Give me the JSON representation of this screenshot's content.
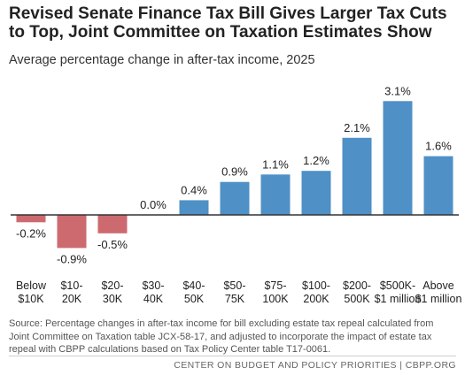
{
  "chart_data": {
    "type": "bar",
    "title_lines": [
      "Revised Senate Finance Tax Bill Gives Larger Tax Cuts",
      "to Top, Joint Committee on Taxation Estimates Show"
    ],
    "subtitle": "Average percentage change in after-tax income, 2025",
    "categories": [
      [
        "Below",
        "$10K"
      ],
      [
        "$10-",
        "20K"
      ],
      [
        "$20-",
        "30K"
      ],
      [
        "$30-",
        "40K"
      ],
      [
        "$40-",
        "50K"
      ],
      [
        "$50-",
        "75K"
      ],
      [
        "$75-",
        "100K"
      ],
      [
        "$100-",
        "200K"
      ],
      [
        "$200-",
        "500K"
      ],
      [
        "$500K-",
        "$1 million"
      ],
      [
        "Above",
        "$1 million"
      ]
    ],
    "values": [
      -0.2,
      -0.9,
      -0.5,
      0.0,
      0.4,
      0.9,
      1.1,
      1.2,
      2.1,
      3.1,
      1.6
    ],
    "value_labels": [
      "-0.2%",
      "-0.9%",
      "-0.5%",
      "0.0%",
      "0.4%",
      "0.9%",
      "1.1%",
      "1.2%",
      "2.1%",
      "3.1%",
      "1.6%"
    ],
    "colors": {
      "positive": "#4f90c6",
      "negative": "#cd6a6f",
      "axis": "#333333"
    },
    "ylim": [
      -1.1,
      3.3
    ],
    "grid": false,
    "legend": "none"
  },
  "source": "Source: Percentage changes in after-tax income for bill excluding estate tax repeal calculated from Joint Committee on Taxation table JCX-58-17, and adjusted to incorporate the impact of estate tax repeal with CBPP calculations based on Tax Policy Center table T17-0061.",
  "credit": "CENTER ON BUDGET AND POLICY PRIORITIES | CBPP.ORG"
}
